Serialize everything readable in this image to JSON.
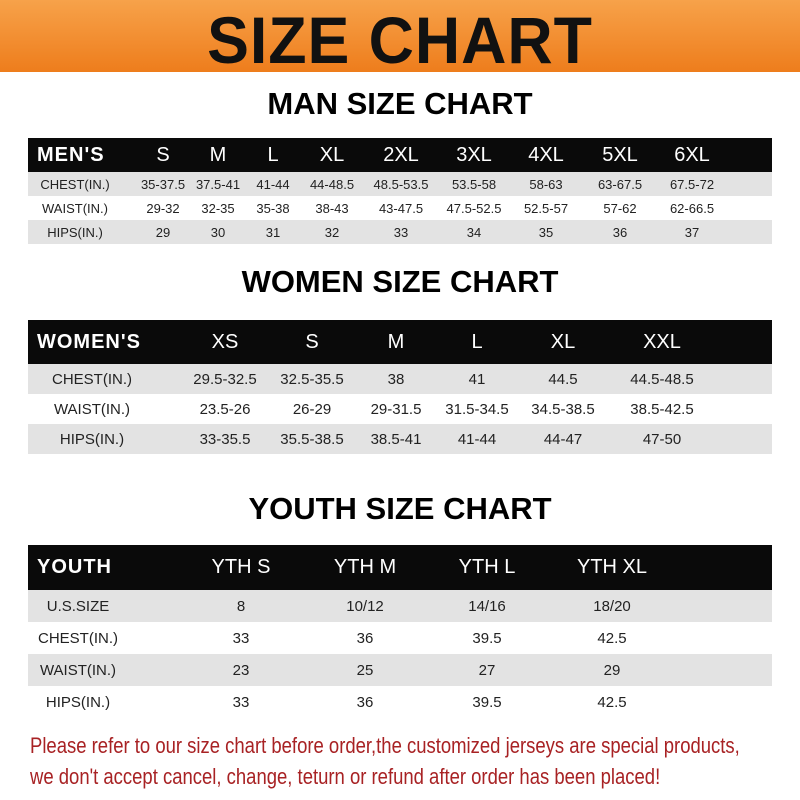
{
  "title": "SIZE CHART",
  "colors": {
    "banner": "#f28a2a",
    "header_row": "#0a0a0a",
    "stripe": "#e3e3e3",
    "notice": "#a82224"
  },
  "men": {
    "title": "MAN SIZE CHART",
    "header": [
      "MEN'S",
      "S",
      "M",
      "L",
      "XL",
      "2XL",
      "3XL",
      "4XL",
      "5XL",
      "6XL"
    ],
    "rows": [
      [
        "CHEST(IN.)",
        "35-37.5",
        "37.5-41",
        "41-44",
        "44-48.5",
        "48.5-53.5",
        "53.5-58",
        "58-63",
        "63-67.5",
        "67.5-72"
      ],
      [
        "WAIST(IN.)",
        "29-32",
        "32-35",
        "35-38",
        "38-43",
        "43-47.5",
        "47.5-52.5",
        "52.5-57",
        "57-62",
        "62-66.5"
      ],
      [
        "HIPS(IN.)",
        "29",
        "30",
        "31",
        "32",
        "33",
        "34",
        "35",
        "36",
        "37"
      ]
    ]
  },
  "women": {
    "title": "WOMEN SIZE CHART",
    "header": [
      "WOMEN'S",
      "XS",
      "S",
      "M",
      "L",
      "XL",
      "XXL"
    ],
    "rows": [
      [
        "CHEST(IN.)",
        "29.5-32.5",
        "32.5-35.5",
        "38",
        "41",
        "44.5",
        "44.5-48.5"
      ],
      [
        "WAIST(IN.)",
        "23.5-26",
        "26-29",
        "29-31.5",
        "31.5-34.5",
        "34.5-38.5",
        "38.5-42.5"
      ],
      [
        "HIPS(IN.)",
        "33-35.5",
        "35.5-38.5",
        "38.5-41",
        "41-44",
        "44-47",
        "47-50"
      ]
    ]
  },
  "youth": {
    "title": "YOUTH SIZE CHART",
    "header": [
      "YOUTH",
      "YTH S",
      "YTH M",
      "YTH L",
      "YTH XL"
    ],
    "rows": [
      [
        "U.S.SIZE",
        "8",
        "10/12",
        "14/16",
        "18/20"
      ],
      [
        "CHEST(IN.)",
        "33",
        "36",
        "39.5",
        "42.5"
      ],
      [
        "WAIST(IN.)",
        "23",
        "25",
        "27",
        "29"
      ],
      [
        "HIPS(IN.)",
        "33",
        "36",
        "39.5",
        "42.5"
      ]
    ]
  },
  "notice": {
    "line1": "Please refer to our size chart before order,the customized jerseys are special products,",
    "line2": "we don't accept cancel, change, teturn or refund after order has been placed!"
  }
}
